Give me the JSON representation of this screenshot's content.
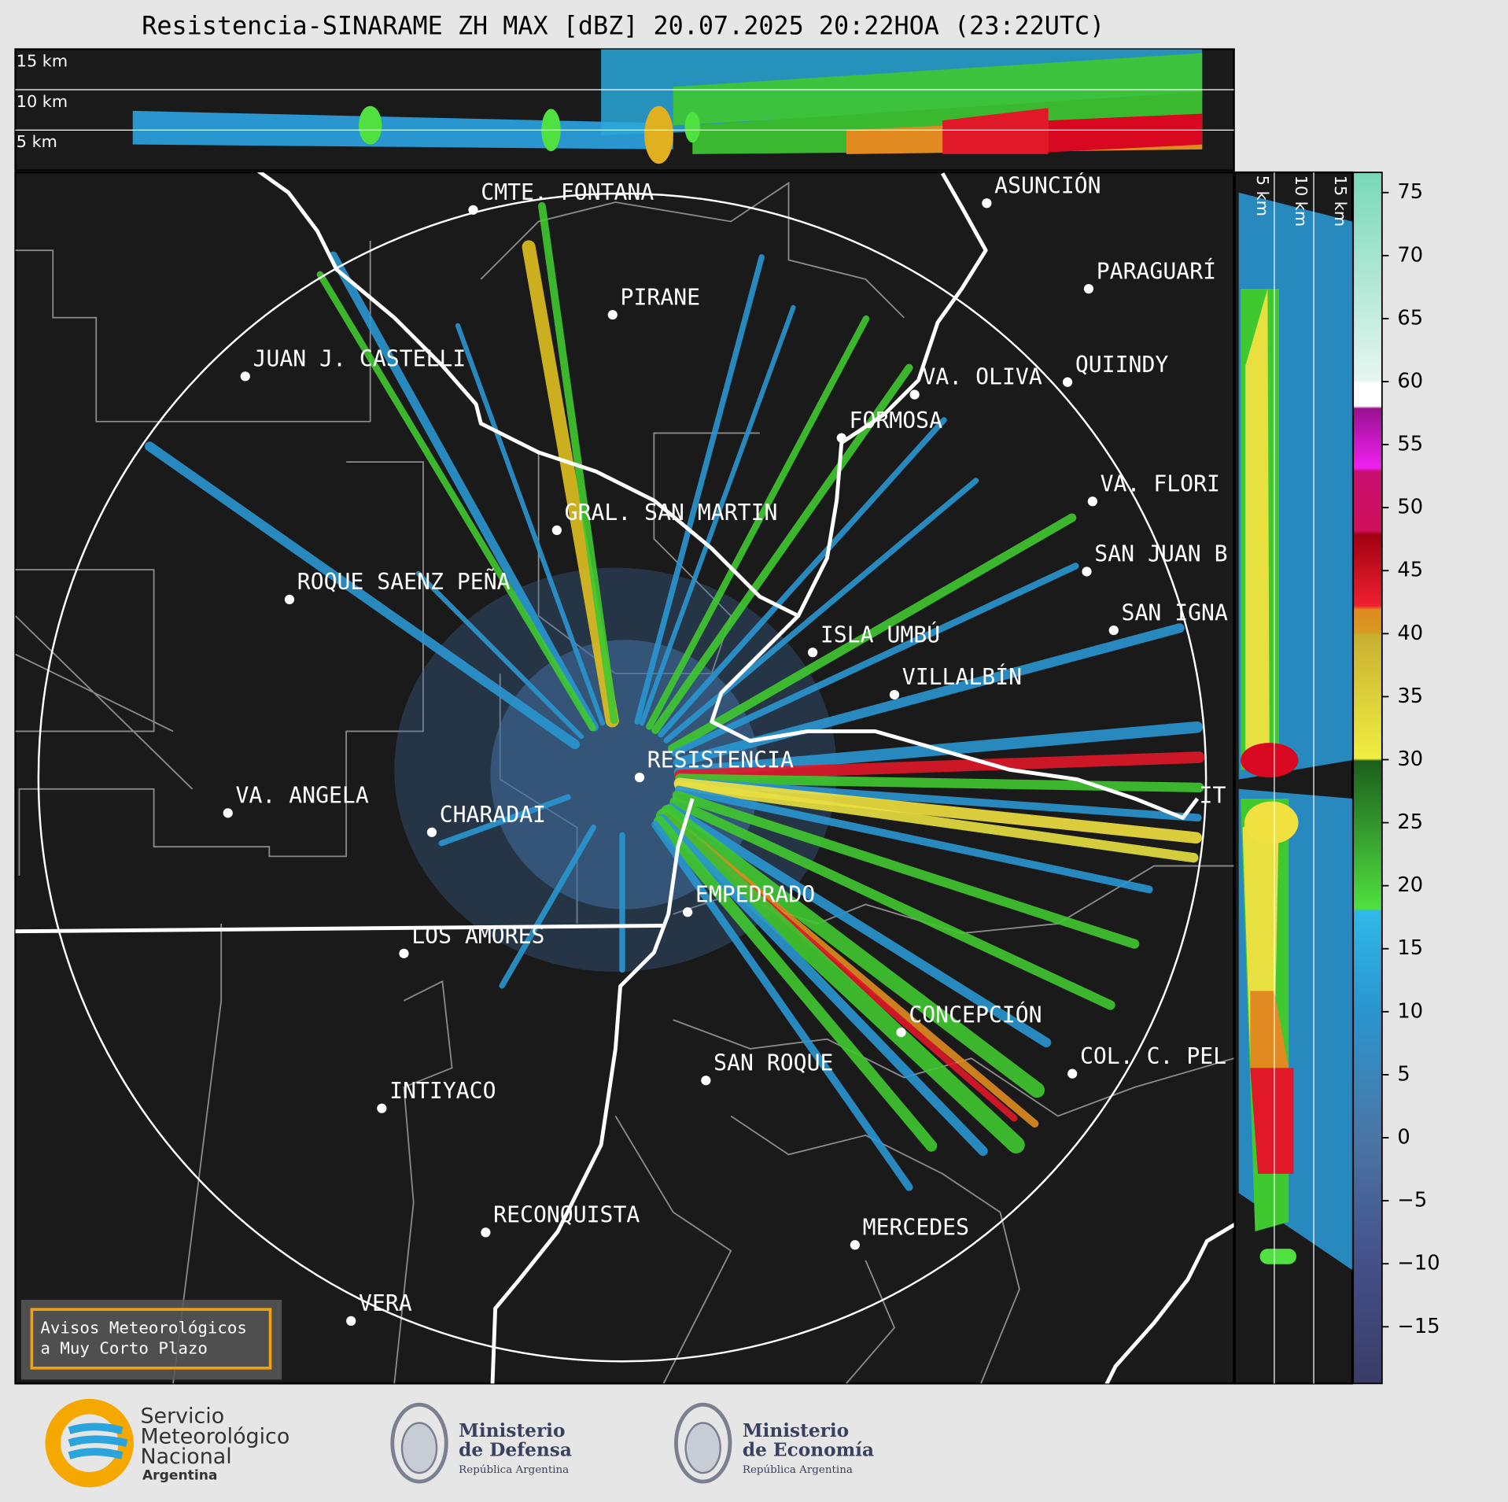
{
  "title": "Resistencia-SINARAME ZH MAX [dBZ] 20.07.2025 20:22HOA (23:22UTC)",
  "top_panel": {
    "heights": [
      "15 km",
      "10 km",
      "5 km"
    ]
  },
  "side_panel": {
    "heights": [
      "5 km",
      "10 km",
      "15 km"
    ]
  },
  "cities": [
    "CMTE. FONTANA",
    "ASUNCIÓN",
    "PIRANE",
    "PARAGUARÍ",
    "JUAN J. CASTELLI",
    "VA. OLIVA",
    "QUIINDY",
    "FORMOSA",
    "VA. FLORI",
    "GRAL. SAN MARTIN",
    "SAN JUAN B",
    "ROQUE SAENZ PEÑA",
    "SAN IGNA",
    "ISLA UMBÚ",
    "VILLALBÍN",
    "RESISTENCIA",
    "VA. ANGELA",
    "CHARADAI",
    "IT",
    "EMPEDRADO",
    "LOS AMORES",
    "CONCEPCIÓN",
    "COL. C. PEL",
    "SAN ROQUE",
    "INTIYACO",
    "RECONQUISTA",
    "MERCEDES",
    "VERA"
  ],
  "colorbar": {
    "lim": [
      -19.5,
      76.6
    ],
    "ticks": [
      75,
      70,
      65,
      60,
      55,
      50,
      45,
      40,
      35,
      30,
      25,
      20,
      15,
      10,
      5,
      0,
      {
        "value": -5,
        "label": "−5"
      },
      {
        "value": -10,
        "label": "−10"
      },
      {
        "value": -15,
        "label": "−15"
      }
    ]
  },
  "notice": [
    "Avisos Meteorológicos",
    "a Muy Corto Plazo"
  ],
  "footer": {
    "smn": [
      "Servicio",
      "Meteorológico",
      "Nacional",
      "Argentina"
    ],
    "defensa": [
      "Ministerio",
      "de Defensa",
      "República Argentina"
    ],
    "economia": [
      "Ministerio",
      "de Economía",
      "República Argentina"
    ]
  }
}
